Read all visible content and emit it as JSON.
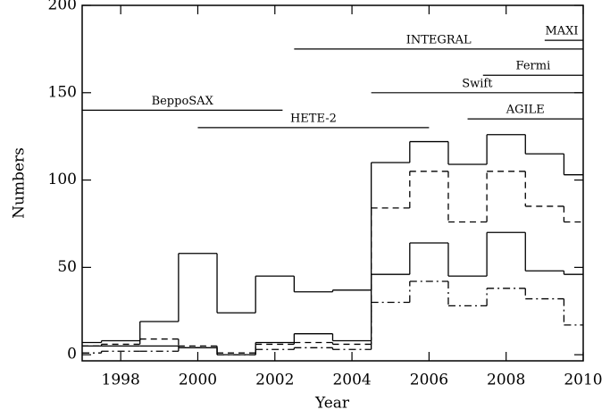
{
  "chart_data": {
    "type": "histogram",
    "xlabel": "Year",
    "ylabel": "Numbers",
    "bins": [
      1997,
      1997.5,
      1998.5,
      1999.5,
      2000.5,
      2001.5,
      2002.5,
      2003.5,
      2004.5,
      2005.5,
      2006.5,
      2007.5,
      2008.5,
      2009.5,
      2010
    ],
    "series": [
      {
        "color": "#000000",
        "dash": "solid",
        "values": [
          7,
          8,
          19,
          58,
          24,
          45,
          36,
          37,
          110,
          122,
          109,
          126,
          115,
          103
        ]
      },
      {
        "color": "#000000",
        "dash": "dashed",
        "values": [
          5,
          6,
          9,
          5,
          1,
          6,
          7,
          6,
          84,
          105,
          76,
          105,
          85,
          76
        ]
      },
      {
        "color": "#000000",
        "dash": "solid",
        "values": [
          5,
          5,
          5,
          4,
          0,
          7,
          12,
          8,
          46,
          64,
          45,
          70,
          48,
          46
        ]
      },
      {
        "color": "#000000",
        "dash": "dashdot",
        "values": [
          1,
          2,
          2,
          4,
          0,
          3,
          4,
          3,
          30,
          42,
          28,
          38,
          32,
          17
        ]
      }
    ],
    "missions": [
      {
        "name": "BeppoSAX",
        "start": 1997,
        "end": 2002.2,
        "level": 140
      },
      {
        "name": "HETE-2",
        "start": 2000,
        "end": 2006,
        "level": 130
      },
      {
        "name": "INTEGRAL",
        "start": 2002.5,
        "end": 2010,
        "level": 175
      },
      {
        "name": "Swift",
        "start": 2004.5,
        "end": 2010,
        "level": 150
      },
      {
        "name": "Fermi",
        "start": 2007.4,
        "end": 2010,
        "level": 160
      },
      {
        "name": "AGILE",
        "start": 2007,
        "end": 2010,
        "level": 135
      },
      {
        "name": "MAXI",
        "start": 2009,
        "end": 2010,
        "level": 180
      }
    ],
    "xlim": [
      1997,
      2010
    ],
    "xticks": [
      1998,
      2000,
      2002,
      2004,
      2006,
      2008,
      2010
    ],
    "ylim": [
      -3.5,
      200
    ],
    "yticks": [
      0,
      50,
      100,
      150,
      200
    ]
  }
}
